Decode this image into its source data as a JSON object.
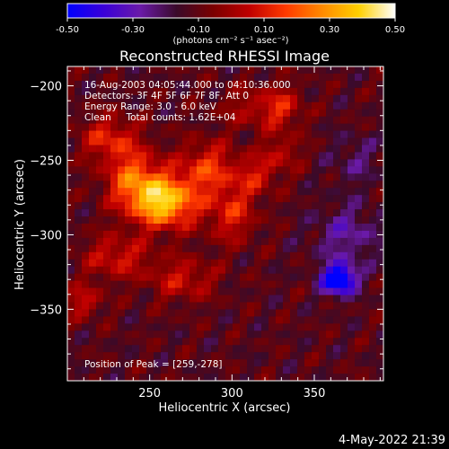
{
  "colorbar": {
    "ticks": [
      "-0.50",
      "-0.30",
      "-0.10",
      "0.10",
      "0.30",
      "0.50"
    ],
    "units": "(photons cm⁻² s⁻¹ asec⁻²)",
    "range": [
      -0.5,
      0.5
    ],
    "colors": [
      "#0000ff",
      "#3a00d8",
      "#6a1aa8",
      "#3a0a2a",
      "#7a0000",
      "#c00000",
      "#ff3a00",
      "#ff8a00",
      "#ffd000",
      "#ffffff"
    ]
  },
  "chart_data": {
    "type": "heatmap",
    "title": "Reconstructed RHESSI Image",
    "xlabel": "Heliocentric X (arcsec)",
    "ylabel": "Heliocentric Y (arcsec)",
    "xlim": [
      200,
      392
    ],
    "ylim": [
      -398,
      -187
    ],
    "xticks": [
      250,
      300,
      350
    ],
    "yticks": [
      -200,
      -250,
      -300,
      -350
    ],
    "annotations": [
      "16-Aug-2003 04:05:44.000 to 04:10:36.000",
      "Detectors: 3F 4F 5F 6F 7F 8F, Att 0",
      "Energy Range: 3.0 - 6.0 keV",
      "Clean     Total counts: 1.62E+04"
    ],
    "peak_label": "Position of Peak = [259,-278]",
    "peak": [
      259,
      -278
    ],
    "sources": [
      {
        "x": 259,
        "y": -278,
        "amp": 0.5,
        "sx": 14,
        "sy": 12
      },
      {
        "x": 240,
        "y": -262,
        "amp": 0.3,
        "sx": 12,
        "sy": 14
      },
      {
        "x": 225,
        "y": -235,
        "amp": 0.22,
        "sx": 12,
        "sy": 10
      },
      {
        "x": 285,
        "y": -255,
        "amp": 0.25,
        "sx": 12,
        "sy": 12
      },
      {
        "x": 300,
        "y": -285,
        "amp": 0.22,
        "sx": 10,
        "sy": 14
      },
      {
        "x": 315,
        "y": -260,
        "amp": 0.18,
        "sx": 9,
        "sy": 9
      },
      {
        "x": 330,
        "y": -215,
        "amp": 0.2,
        "sx": 9,
        "sy": 10
      },
      {
        "x": 330,
        "y": -245,
        "amp": 0.15,
        "sx": 8,
        "sy": 8
      },
      {
        "x": 230,
        "y": -315,
        "amp": 0.2,
        "sx": 14,
        "sy": 10
      },
      {
        "x": 270,
        "y": -330,
        "amp": 0.18,
        "sx": 14,
        "sy": 10
      },
      {
        "x": 210,
        "y": -345,
        "amp": 0.18,
        "sx": 8,
        "sy": 8
      },
      {
        "x": 310,
        "y": -215,
        "amp": 0.12,
        "sx": 12,
        "sy": 10
      },
      {
        "x": 365,
        "y": -330,
        "amp": -0.5,
        "sx": 7,
        "sy": 7
      },
      {
        "x": 370,
        "y": -300,
        "amp": -0.15,
        "sx": 14,
        "sy": 14
      },
      {
        "x": 375,
        "y": -250,
        "amp": -0.1,
        "sx": 10,
        "sy": 12
      }
    ]
  },
  "timestamp": "4-May-2022 21:39"
}
